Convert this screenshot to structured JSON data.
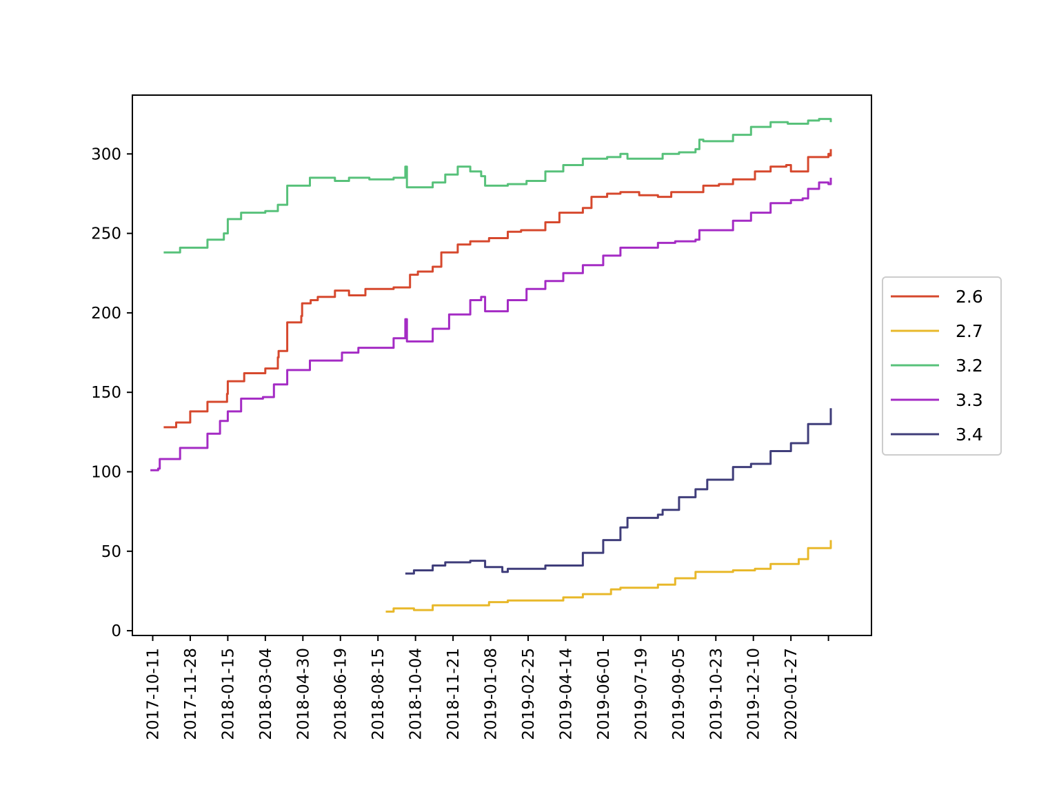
{
  "chart_data": {
    "type": "line",
    "title": "",
    "xlabel": "",
    "ylabel": "",
    "x_axis": {
      "kind": "date",
      "range": [
        "2017-09-15",
        "2020-04-17"
      ],
      "tick_labels": [
        "2017-10-11",
        "2017-11-28",
        "2018-01-15",
        "2018-03-04",
        "2018-04-30",
        "2018-06-19",
        "2018-08-15",
        "2018-10-04",
        "2018-11-21",
        "2019-01-08",
        "2019-02-25",
        "2019-04-14",
        "2019-06-01",
        "2019-07-19",
        "2019-09-05",
        "2019-10-23",
        "2019-12-10",
        "2020-01-27",
        ""
      ]
    },
    "y_axis": {
      "range": [
        -3,
        337
      ],
      "ticks": [
        0,
        50,
        100,
        150,
        200,
        250,
        300
      ],
      "tick_labels": [
        "0",
        "50",
        "100",
        "150",
        "200",
        "250",
        "300"
      ]
    },
    "grid": false,
    "legend": {
      "placement": "center-right-outside"
    },
    "series": [
      {
        "name": "2.6",
        "color": "#d6482d",
        "x": [
          "2017-10-25",
          "2017-11-10",
          "2017-11-28",
          "2017-12-20",
          "2018-01-14",
          "2018-01-15",
          "2018-02-05",
          "2018-03-04",
          "2018-03-20",
          "2018-03-21",
          "2018-04-01",
          "2018-04-19",
          "2018-04-20",
          "2018-05-01",
          "2018-05-10",
          "2018-06-01",
          "2018-06-19",
          "2018-07-10",
          "2018-07-20",
          "2018-08-15",
          "2018-09-05",
          "2018-09-15",
          "2018-10-04",
          "2018-10-15",
          "2018-11-05",
          "2018-11-21",
          "2018-12-15",
          "2019-01-08",
          "2019-01-25",
          "2019-02-15",
          "2019-02-25",
          "2019-03-15",
          "2019-04-14",
          "2019-04-25",
          "2019-05-15",
          "2019-06-01",
          "2019-06-25",
          "2019-07-19",
          "2019-08-05",
          "2019-08-20",
          "2019-09-05",
          "2019-09-15",
          "2019-10-05",
          "2019-10-23",
          "2019-11-20",
          "2019-12-10",
          "2019-12-30",
          "2020-01-05",
          "2020-01-27",
          "2020-02-22",
          "2020-02-24",
          "2020-02-25"
        ],
        "y": [
          128,
          131,
          138,
          144,
          149,
          157,
          162,
          165,
          172,
          176,
          194,
          198,
          206,
          208,
          210,
          214,
          211,
          215,
          215,
          216,
          224,
          226,
          229,
          238,
          243,
          245,
          247,
          251,
          252,
          252,
          257,
          263,
          266,
          273,
          275,
          276,
          274,
          273,
          276,
          276,
          276,
          280,
          281,
          284,
          289,
          292,
          293,
          289,
          298,
          300,
          299,
          303
        ]
      },
      {
        "name": "2.7",
        "color": "#e8b82a",
        "x": [
          "2018-08-05",
          "2018-08-15",
          "2018-09-10",
          "2018-10-04",
          "2018-11-21",
          "2018-12-15",
          "2019-01-08",
          "2019-02-25",
          "2019-03-20",
          "2019-04-14",
          "2019-05-20",
          "2019-06-01",
          "2019-07-19",
          "2019-08-10",
          "2019-09-05",
          "2019-10-01",
          "2019-10-23",
          "2019-11-20",
          "2019-12-10",
          "2020-01-05",
          "2020-01-15",
          "2020-01-27",
          "2020-02-25"
        ],
        "y": [
          12,
          14,
          13,
          16,
          16,
          18,
          19,
          19,
          21,
          23,
          26,
          27,
          29,
          33,
          37,
          37,
          38,
          39,
          42,
          42,
          45,
          52,
          57
        ]
      },
      {
        "name": "3.2",
        "color": "#57c17a",
        "x": [
          "2017-10-25",
          "2017-11-15",
          "2017-12-20",
          "2018-01-10",
          "2018-01-15",
          "2018-02-01",
          "2018-03-04",
          "2018-03-20",
          "2018-04-01",
          "2018-04-30",
          "2018-06-01",
          "2018-06-19",
          "2018-07-15",
          "2018-08-15",
          "2018-08-30",
          "2018-09-01",
          "2018-10-04",
          "2018-10-20",
          "2018-11-05",
          "2018-11-21",
          "2018-12-05",
          "2018-12-10",
          "2019-01-08",
          "2019-02-01",
          "2019-02-25",
          "2019-03-20",
          "2019-04-14",
          "2019-05-15",
          "2019-06-01",
          "2019-06-10",
          "2019-07-19",
          "2019-07-25",
          "2019-08-15",
          "2019-09-05",
          "2019-09-10",
          "2019-09-15",
          "2019-10-23",
          "2019-11-15",
          "2019-12-10",
          "2020-01-01",
          "2020-01-27",
          "2020-02-10",
          "2020-02-25"
        ],
        "y": [
          238,
          241,
          246,
          250,
          259,
          263,
          264,
          268,
          280,
          285,
          283,
          285,
          284,
          285,
          292,
          279,
          282,
          287,
          292,
          289,
          286,
          280,
          281,
          283,
          289,
          293,
          297,
          298,
          300,
          297,
          297,
          300,
          301,
          303,
          309,
          308,
          312,
          317,
          320,
          319,
          321,
          322,
          320
        ]
      },
      {
        "name": "3.3",
        "color": "#a42bc4",
        "x": [
          "2017-10-08",
          "2017-10-18",
          "2017-10-20",
          "2017-11-15",
          "2017-12-20",
          "2018-01-05",
          "2018-01-15",
          "2018-02-01",
          "2018-03-01",
          "2018-03-15",
          "2018-04-01",
          "2018-04-30",
          "2018-05-15",
          "2018-06-10",
          "2018-07-01",
          "2018-08-15",
          "2018-08-30",
          "2018-09-01",
          "2018-10-04",
          "2018-10-25",
          "2018-11-21",
          "2018-12-05",
          "2018-12-10",
          "2019-01-08",
          "2019-02-01",
          "2019-02-25",
          "2019-03-20",
          "2019-04-14",
          "2019-05-10",
          "2019-06-01",
          "2019-06-20",
          "2019-07-19",
          "2019-08-10",
          "2019-09-05",
          "2019-09-10",
          "2019-10-23",
          "2019-11-15",
          "2019-12-10",
          "2020-01-05",
          "2020-01-20",
          "2020-01-27",
          "2020-02-10",
          "2020-02-22",
          "2020-02-25"
        ],
        "y": [
          101,
          102,
          108,
          115,
          124,
          132,
          138,
          146,
          147,
          155,
          164,
          170,
          170,
          175,
          178,
          184,
          196,
          182,
          190,
          199,
          208,
          210,
          201,
          208,
          215,
          220,
          225,
          230,
          236,
          241,
          241,
          244,
          245,
          246,
          252,
          258,
          263,
          269,
          271,
          272,
          278,
          282,
          281,
          285
        ]
      },
      {
        "name": "3.4",
        "color": "#3f3d7a",
        "x": [
          "2018-08-30",
          "2018-09-10",
          "2018-10-04",
          "2018-10-20",
          "2018-11-21",
          "2018-12-10",
          "2019-01-01",
          "2019-01-08",
          "2019-02-25",
          "2019-03-20",
          "2019-04-14",
          "2019-05-10",
          "2019-06-01",
          "2019-06-10",
          "2019-07-19",
          "2019-07-25",
          "2019-08-15",
          "2019-09-05",
          "2019-09-20",
          "2019-10-23",
          "2019-11-10",
          "2019-11-15",
          "2019-12-10",
          "2020-01-05",
          "2020-01-27",
          "2020-02-25"
        ],
        "y": [
          36,
          38,
          41,
          43,
          44,
          40,
          37,
          39,
          41,
          41,
          49,
          57,
          65,
          71,
          73,
          76,
          84,
          89,
          95,
          103,
          103,
          105,
          113,
          118,
          130,
          140
        ]
      }
    ]
  }
}
